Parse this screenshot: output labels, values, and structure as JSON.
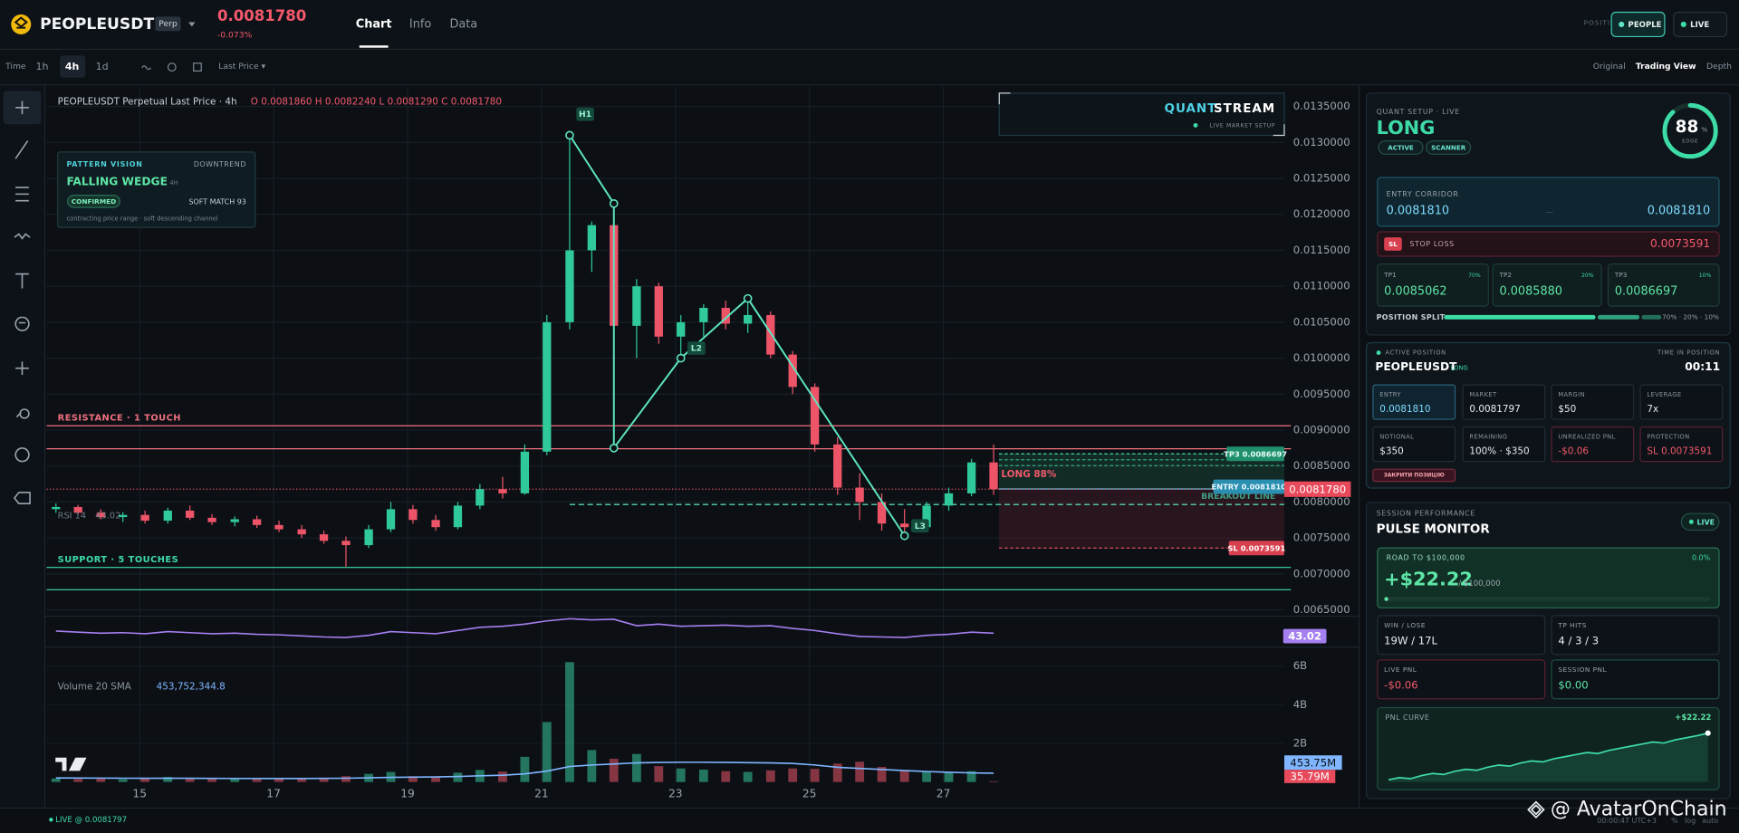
{
  "header": {
    "symbol": "PEOPLEUSDT",
    "badge": "Perp",
    "price": "0.0081780",
    "change": "-0.073%",
    "tabs": [
      "Chart",
      "Info",
      "Data"
    ],
    "positions_label": "POSITIONS",
    "buttons": [
      "PEOPLE",
      "LIVE"
    ]
  },
  "toolbar": {
    "time_label": "Time",
    "intervals": [
      "1h",
      "4h",
      "1d"
    ],
    "price_source": "Last Price ▾",
    "views": [
      "Original",
      "Trading View",
      "Depth"
    ]
  },
  "chart_data": {
    "type": "candlestick",
    "title": "PEOPLEUSDT Perpetual Last Price · 4h",
    "ohlc": "O 0.0081860 H 0.0082240 L 0.0081290 C 0.0081780",
    "colors": {
      "up": "#2fc99a",
      "down": "#ee5468"
    },
    "x": [
      13.75,
      14.08,
      14.42,
      14.75,
      15.08,
      15.42,
      15.75,
      16.08,
      16.42,
      16.75,
      17.08,
      17.42,
      17.75,
      18.08,
      18.42,
      18.75,
      19.08,
      19.42,
      19.75,
      20.08,
      20.42,
      20.75,
      21.08,
      21.42,
      21.75,
      22.08,
      22.42,
      22.75,
      23.08,
      23.42,
      23.75,
      24.08,
      24.42,
      24.75,
      25.08,
      25.42,
      25.75,
      26.08,
      26.42,
      26.75,
      27.08,
      27.42,
      27.75
    ],
    "open": [
      0.0079,
      0.00793,
      0.00785,
      0.00779,
      0.00782,
      0.00774,
      0.00788,
      0.00778,
      0.00772,
      0.00776,
      0.00768,
      0.00762,
      0.00755,
      0.00746,
      0.0074,
      0.00762,
      0.0079,
      0.00775,
      0.00765,
      0.00795,
      0.00818,
      0.00812,
      0.0087,
      0.0105,
      0.0115,
      0.01185,
      0.01045,
      0.011,
      0.0103,
      0.0105,
      0.0107,
      0.01048,
      0.0106,
      0.01005,
      0.0096,
      0.0088,
      0.0082,
      0.008,
      0.0077,
      0.00765,
      0.00795,
      0.00812,
      0.00855
    ],
    "high": [
      0.00798,
      0.00796,
      0.0079,
      0.00786,
      0.00788,
      0.00792,
      0.00795,
      0.00783,
      0.0078,
      0.00781,
      0.00774,
      0.00768,
      0.0076,
      0.00752,
      0.00768,
      0.008,
      0.00796,
      0.00782,
      0.008,
      0.00825,
      0.00835,
      0.0088,
      0.0106,
      0.0131,
      0.0119,
      0.01215,
      0.0111,
      0.01105,
      0.0106,
      0.01075,
      0.0108,
      0.01083,
      0.01065,
      0.0101,
      0.00965,
      0.0089,
      0.0084,
      0.00812,
      0.0079,
      0.008,
      0.0082,
      0.0086,
      0.0088
    ],
    "low": [
      0.00785,
      0.00782,
      0.00776,
      0.00772,
      0.0077,
      0.0077,
      0.00775,
      0.00768,
      0.00766,
      0.00764,
      0.00758,
      0.0075,
      0.00742,
      0.0071,
      0.00736,
      0.00758,
      0.0077,
      0.0076,
      0.00762,
      0.0079,
      0.00805,
      0.0081,
      0.00865,
      0.0104,
      0.0112,
      0.00875,
      0.01,
      0.0102,
      0.00995,
      0.0103,
      0.0104,
      0.01035,
      0.01,
      0.0095,
      0.0087,
      0.0081,
      0.00775,
      0.0076,
      0.00752,
      0.0076,
      0.00788,
      0.00808,
      0.0081
    ],
    "close": [
      0.00793,
      0.00785,
      0.00779,
      0.00782,
      0.00774,
      0.00788,
      0.00778,
      0.00772,
      0.00776,
      0.00768,
      0.00762,
      0.00755,
      0.00746,
      0.0074,
      0.00762,
      0.0079,
      0.00775,
      0.00765,
      0.00795,
      0.00818,
      0.00812,
      0.0087,
      0.0105,
      0.0115,
      0.01185,
      0.01045,
      0.011,
      0.0103,
      0.0105,
      0.0107,
      0.01048,
      0.0106,
      0.01005,
      0.0096,
      0.0088,
      0.0082,
      0.008,
      0.0077,
      0.00765,
      0.00795,
      0.00812,
      0.00855,
      0.008178
    ],
    "xlim": [
      13.61,
      32.09
    ],
    "xticks": [
      15,
      17,
      19,
      21,
      23,
      25,
      27
    ],
    "ylim": [
      0.00642,
      0.013778
    ],
    "yticks": [
      {
        "value": 0.0135,
        "label": "0.0135000"
      },
      {
        "value": 0.013,
        "label": "0.0130000"
      },
      {
        "value": 0.0125,
        "label": "0.0125000"
      },
      {
        "value": 0.012,
        "label": "0.0120000"
      },
      {
        "value": 0.0115,
        "label": "0.0115000"
      },
      {
        "value": 0.011,
        "label": "0.0110000"
      },
      {
        "value": 0.0105,
        "label": "0.0105000"
      },
      {
        "value": 0.01,
        "label": "0.0100000"
      },
      {
        "value": 0.0095,
        "label": "0.0095000"
      },
      {
        "value": 0.009,
        "label": "0.0090000"
      },
      {
        "value": 0.0085,
        "label": "0.0085000"
      },
      {
        "value": 0.008,
        "label": "0.0080000"
      },
      {
        "value": 0.0075,
        "label": "0.0075000"
      },
      {
        "value": 0.007,
        "label": "0.0070000"
      },
      {
        "value": 0.0065,
        "label": "0.0065000"
      }
    ],
    "grid": true,
    "levels": [
      {
        "name": "RESISTANCE · 1 TOUCH",
        "values": [
          0.00906,
          0.00874
        ],
        "color": "#f0707f"
      },
      {
        "name": "SUPPORT · 5 TOUCHES",
        "values": [
          0.00709,
          0.00678
        ],
        "color": "#3ddba6"
      }
    ],
    "last_price": {
      "value": 0.008178,
      "label": "0.0081780"
    },
    "breakout": {
      "label": "BREAKOUT LINE",
      "value": 0.007965,
      "start": 21.42
    },
    "pattern": [
      {
        "x": 21.42,
        "y": 0.0131,
        "label": "H1"
      },
      {
        "x": 22.08,
        "y": 0.01215
      },
      {
        "x": 22.08,
        "y": 0.00875
      },
      {
        "x": 23.08,
        "y": 0.01,
        "label": "L2"
      },
      {
        "x": 24.08,
        "y": 0.01083
      },
      {
        "x": 26.42,
        "y": 0.00753,
        "label": "L3"
      }
    ],
    "trade": {
      "side": "LONG 88%",
      "start": 27.83,
      "color": "#3ddba6",
      "entry": {
        "value": 0.008181,
        "label": "ENTRY 0.0081810"
      },
      "tp": {
        "value": 0.0086697,
        "label": "TP3 0.0086697"
      },
      "tp_levels": [
        0.0085062,
        0.008588
      ],
      "sl": {
        "value": 0.0073591,
        "label": "SL 0.0073591"
      }
    },
    "rsi": {
      "label": "RSI 14",
      "value_label": "43.02",
      "color": "#a57ff0",
      "ylim": [
        20,
        80
      ],
      "values": [
        47,
        45,
        43,
        44,
        42,
        46,
        44,
        42,
        43,
        41,
        40,
        38,
        36,
        35,
        39,
        46,
        44,
        42,
        48,
        54,
        56,
        60,
        66,
        70,
        68,
        69,
        57,
        60,
        56,
        57,
        58,
        56,
        57,
        52,
        48,
        42,
        37,
        36,
        35,
        39,
        41,
        45,
        43.02
      ]
    },
    "volume": {
      "label": "Volume 20 SMA",
      "sma_label": "453,752,344.8",
      "sma_value_label": "453.75M",
      "last_value_label": "35.79M",
      "sma_color": "#7fb6ff",
      "ylim": [
        0,
        6600000000
      ],
      "yticks": [
        {
          "value": 2000000000,
          "label": "2B"
        },
        {
          "value": 4000000000,
          "label": "4B"
        },
        {
          "value": 6000000000,
          "label": "6B"
        }
      ],
      "values": [
        180000000,
        150000000,
        210000000,
        140000000,
        170000000,
        260000000,
        190000000,
        150000000,
        170000000,
        140000000,
        160000000,
        190000000,
        220000000,
        300000000,
        420000000,
        520000000,
        300000000,
        260000000,
        480000000,
        620000000,
        540000000,
        1300000000,
        3100000000,
        6200000000,
        1650000000,
        1200000000,
        1450000000,
        820000000,
        700000000,
        640000000,
        560000000,
        520000000,
        600000000,
        700000000,
        680000000,
        950000000,
        1050000000,
        780000000,
        600000000,
        520000000,
        480000000,
        560000000,
        35790000
      ],
      "sma": [
        210000000,
        205000000,
        200000000,
        195000000,
        190000000,
        192000000,
        190000000,
        185000000,
        182000000,
        180000000,
        178000000,
        180000000,
        185000000,
        195000000,
        215000000,
        240000000,
        250000000,
        260000000,
        285000000,
        320000000,
        350000000,
        420000000,
        560000000,
        800000000,
        880000000,
        930000000,
        990000000,
        1010000000,
        1020000000,
        1020000000,
        1010000000,
        1000000000,
        990000000,
        960000000,
        880000000,
        760000000,
        700000000,
        650000000,
        590000000,
        540000000,
        500000000,
        470000000,
        453752344.8
      ]
    }
  },
  "pattern_vision": {
    "title": "PATTERN VISION",
    "trend": "DOWNTREND",
    "pattern": "FALLING WEDGE",
    "timeframe": "4H",
    "status": "CONFIRMED",
    "match": "SOFT MATCH 93",
    "note": "contracting price range · soft descending channel"
  },
  "quant_stream": {
    "title_1": "QUANT",
    "title_2": "STREAM",
    "subtitle": "LIVE MARKET SETUP"
  },
  "setup": {
    "label": "QUANT SETUP · LIVE",
    "side": "LONG",
    "badges": [
      "ACTIVE",
      "SCANNER"
    ],
    "edge": 88,
    "edge_unit": "%",
    "edge_label": "EDGE",
    "corridor_label": "ENTRY CORRIDOR",
    "corridor": [
      "0.0081810",
      "—",
      "0.0081810"
    ],
    "sl_badge": "SL",
    "sl_label": "STOP LOSS",
    "sl_value": "0.0073591",
    "targets": [
      {
        "name": "TP1",
        "share": "70%",
        "value": "0.0085062"
      },
      {
        "name": "TP2",
        "share": "20%",
        "value": "0.0085880"
      },
      {
        "name": "TP3",
        "share": "10%",
        "value": "0.0086697"
      }
    ],
    "split_label": "POSITION SPLIT",
    "split": [
      70,
      20,
      10
    ],
    "split_text": "70% · 20% · 10%"
  },
  "position": {
    "label": "ACTIVE POSITION",
    "time_label": "TIME IN POSITION",
    "symbol": "PEOPLEUSDT",
    "side": "LONG",
    "time": "00:11",
    "cells": [
      {
        "label": "ENTRY",
        "value": "0.0081810"
      },
      {
        "label": "MARKET",
        "value": "0.0081797"
      },
      {
        "label": "MARGIN",
        "value": "$50"
      },
      {
        "label": "LEVERAGE",
        "value": "7x"
      },
      {
        "label": "NOTIONAL",
        "value": "$350"
      },
      {
        "label": "REMAINING",
        "value": "100% · $350"
      },
      {
        "label": "UNREALIZED PNL",
        "value": "-$0.06"
      },
      {
        "label": "PROTECTION",
        "value": "SL 0.0073591"
      }
    ],
    "close_button": "ЗАКРИТИ ПОЗИЦІЮ"
  },
  "session": {
    "label": "SESSION PERFORMANCE",
    "title": "PULSE MONITOR",
    "live": "LIVE",
    "road_label": "ROAD TO $100,000",
    "progress": "0.0%",
    "pnl": "+$22.22",
    "goal": "/ $100,000",
    "stats": [
      {
        "label": "WIN / LOSE",
        "value": "19W / 17L"
      },
      {
        "label": "TP HITS",
        "value": "4 / 3 / 3"
      },
      {
        "label": "LIVE PNL",
        "value": "-$0.06"
      },
      {
        "label": "SESSION PNL",
        "value": "$0.00"
      }
    ],
    "curve_label": "PNL CURVE",
    "curve_value": "+$22.22",
    "curve": [
      0,
      1,
      0.5,
      2,
      3,
      2.5,
      4,
      5,
      4.5,
      6,
      7,
      6.5,
      8,
      9,
      8.5,
      10,
      11,
      12,
      13,
      12.5,
      14,
      15,
      16,
      17,
      18,
      17.5,
      19,
      20,
      21,
      22.22
    ]
  },
  "footer": {
    "status": "LIVE @ 0.0081797",
    "watermark": "@ AvatarOnChain",
    "clock": "00:00:47 UTC+3",
    "options": [
      "%",
      "log",
      "auto"
    ]
  }
}
